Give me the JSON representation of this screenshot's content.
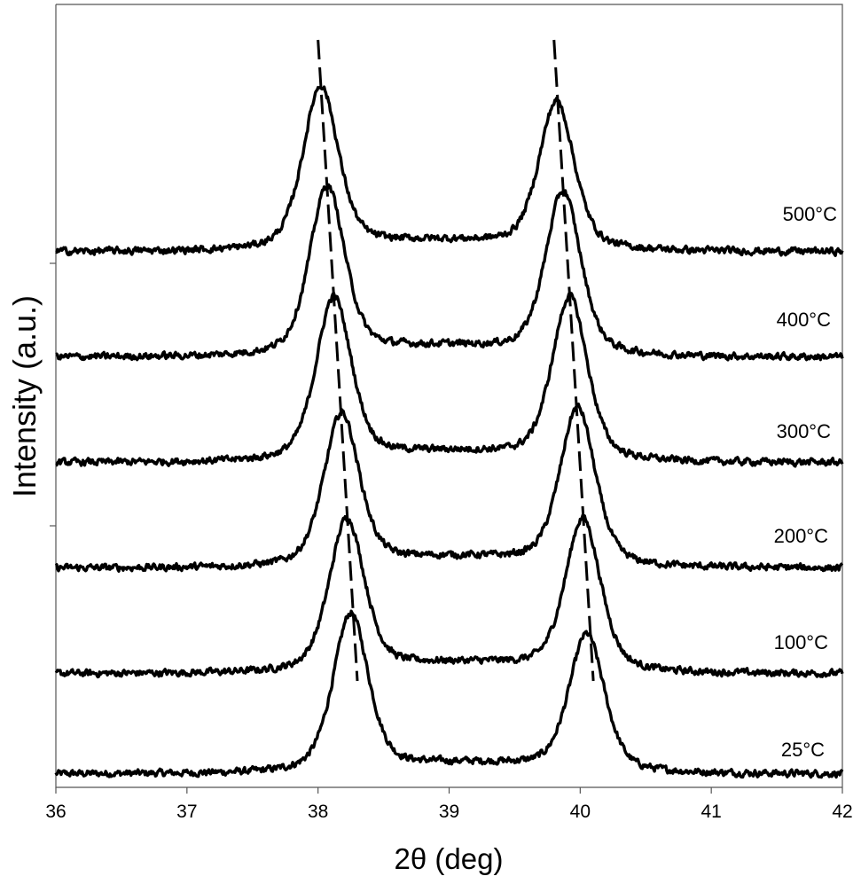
{
  "chart_data": {
    "type": "line",
    "title": "",
    "xlabel": "2θ (deg)",
    "ylabel": "Intensity (a.u.)",
    "xlim": [
      36,
      42
    ],
    "x_ticks": [
      "36",
      "37",
      "38",
      "39",
      "40",
      "41",
      "42"
    ],
    "y_ticks_labeled": false,
    "grid": false,
    "legend": "none",
    "peak_shape": {
      "baseline": 0.0,
      "width_deg": 0.16,
      "tail": 0.15,
      "noise": 0.025
    },
    "series": [
      {
        "name": "25°C",
        "offset": 0.0,
        "peaks": [
          38.25,
          40.05
        ],
        "heights": [
          1.5,
          1.3
        ]
      },
      {
        "name": "100°C",
        "offset": 0.95,
        "peaks": [
          38.22,
          40.02
        ],
        "heights": [
          1.45,
          1.45
        ]
      },
      {
        "name": "200°C",
        "offset": 1.95,
        "peaks": [
          38.18,
          39.98
        ],
        "heights": [
          1.45,
          1.5
        ]
      },
      {
        "name": "300°C",
        "offset": 2.95,
        "peaks": [
          38.12,
          39.92
        ],
        "heights": [
          1.55,
          1.55
        ]
      },
      {
        "name": "400°C",
        "offset": 3.95,
        "peaks": [
          38.07,
          39.87
        ],
        "heights": [
          1.6,
          1.55
        ]
      },
      {
        "name": "500°C",
        "offset": 4.95,
        "peaks": [
          38.02,
          39.82
        ],
        "heights": [
          1.55,
          1.4
        ]
      }
    ],
    "guide_lines": [
      {
        "x_top": 38.0,
        "x_bottom": 38.3
      },
      {
        "x_top": 39.8,
        "x_bottom": 40.1
      }
    ]
  }
}
